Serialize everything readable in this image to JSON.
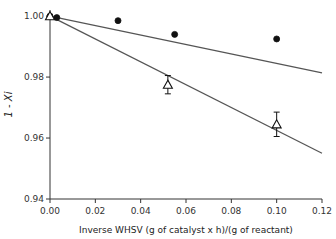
{
  "chart_data": {
    "type": "scatter",
    "xlabel": "Inverse WHSV (g of catalyst x h)/(g of reactant)",
    "ylabel": "1 - Xi",
    "xlim": [
      0.0,
      0.12
    ],
    "ylim": [
      0.94,
      1.002
    ],
    "xticks": [
      {
        "value": 0.0,
        "label": "0.00"
      },
      0.02,
      0.04,
      0.06,
      0.08,
      {
        "value": 0.1,
        "label": "0.10"
      },
      0.12
    ],
    "yticks": [
      0.94,
      0.96,
      0.98,
      {
        "value": 1.0,
        "label": "1.00"
      }
    ],
    "grid": false,
    "series": [
      {
        "type": "line",
        "color": "#555555",
        "x": [
          0.0,
          0.12
        ],
        "values": [
          1.0,
          0.9814
        ]
      },
      {
        "type": "line",
        "color": "#555555",
        "x": [
          0.0,
          0.12
        ],
        "values": [
          1.0,
          0.955
        ]
      },
      {
        "type": "scatter",
        "marker": "circle",
        "color": "#111111",
        "x": [
          0.0,
          0.003,
          0.03,
          0.055,
          0.1
        ],
        "values": [
          1.0,
          0.9995,
          0.9985,
          0.994,
          0.9925
        ]
      },
      {
        "type": "scatter",
        "marker": "open-triangle",
        "color": "#111111",
        "x": [
          0.0,
          0.052,
          0.1
        ],
        "values": [
          1.0,
          0.9775,
          0.9645
        ],
        "errors": [
          0.0,
          0.003,
          0.004
        ]
      }
    ]
  }
}
